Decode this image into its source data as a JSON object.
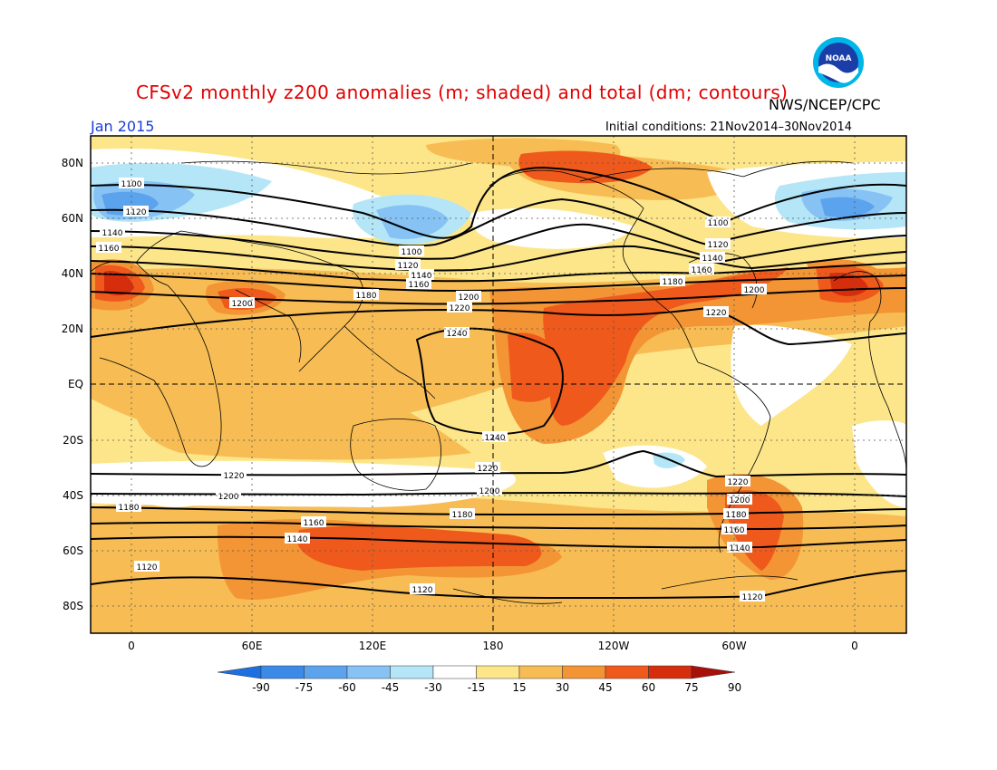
{
  "header": {
    "title": "CFSv2 monthly z200 anomalies (m; shaded) and total (dm; contours)",
    "agency": "NWS/NCEP/CPC",
    "logo_text": "NOAA",
    "month": "Jan 2015",
    "initial_conditions": "Initial conditions: 21Nov2014–30Nov2014"
  },
  "map": {
    "lat_labels": [
      "80N",
      "60N",
      "40N",
      "20N",
      "EQ",
      "20S",
      "40S",
      "60S",
      "80S"
    ],
    "lon_labels": [
      "0",
      "60E",
      "120E",
      "180",
      "120W",
      "60W",
      "0"
    ],
    "contour_labels": [
      "1100",
      "1120",
      "1140",
      "1160",
      "1180",
      "1200",
      "1220",
      "1240"
    ]
  },
  "colorbar": {
    "ticks": [
      "-90",
      "-75",
      "-60",
      "-45",
      "-30",
      "-15",
      "15",
      "30",
      "45",
      "60",
      "75",
      "90"
    ],
    "colors": [
      "#1e6fe0",
      "#3b8ae8",
      "#5ca3ee",
      "#86c2f4",
      "#b4e6f7",
      "#ffffff",
      "#fde68a",
      "#f7bd54",
      "#f39535",
      "#ef5a1c",
      "#d62e0c",
      "#a8100a"
    ],
    "units": "m"
  },
  "colors": {
    "title": "#e00000",
    "month": "#1a3cd6"
  }
}
